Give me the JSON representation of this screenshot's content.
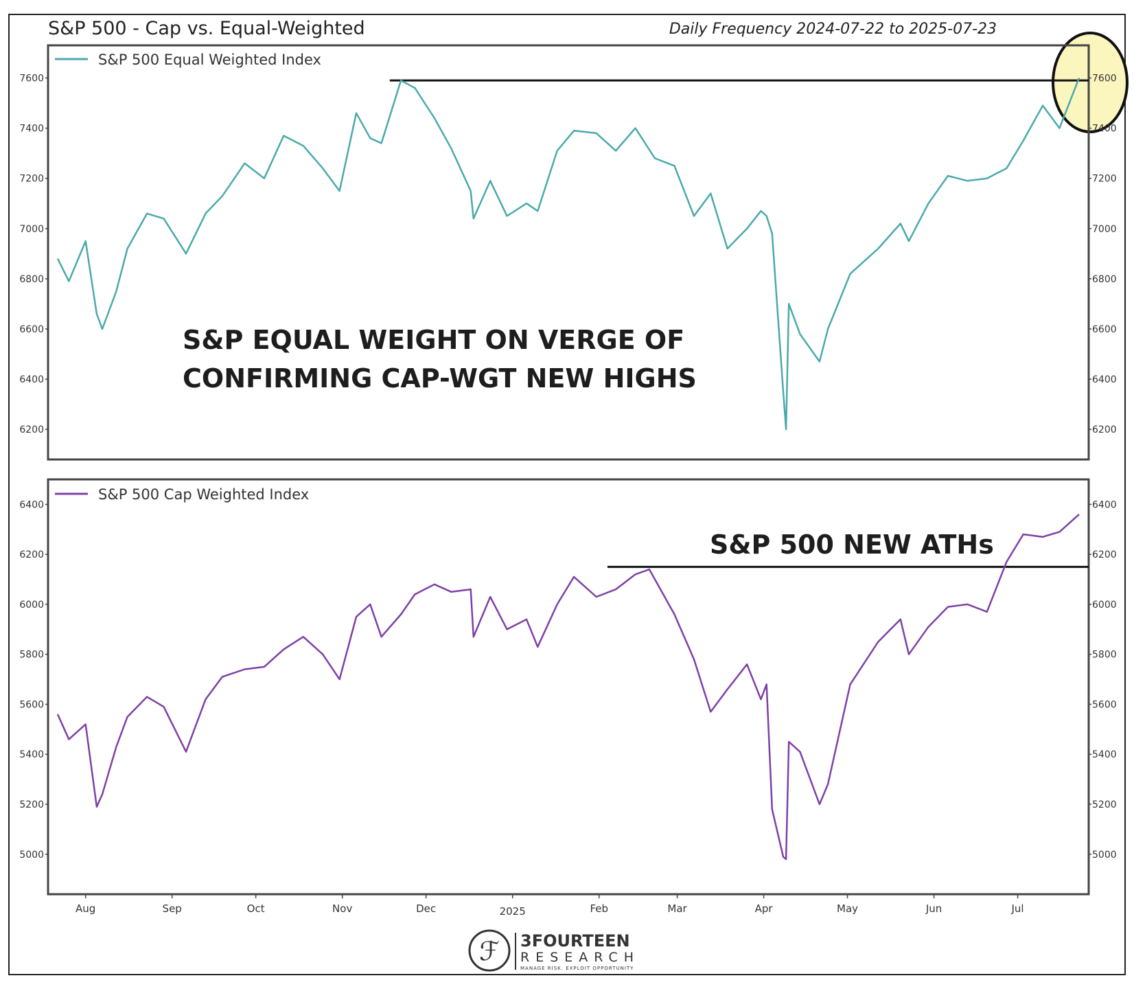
{
  "title": "S&P 500 - Cap vs. Equal-Weighted",
  "subtitle": "Daily Frequency 2024-07-22 to 2025-07-23",
  "colors": {
    "equal": "#4aa9ab",
    "cap": "#7e3fa6",
    "highlight_fill": "#fbf5be",
    "line": "#111111"
  },
  "logo": {
    "name": "3FOURTEEN",
    "sub": "RESEARCH",
    "tagline": "MANAGE RISK. EXPLOIT OPPORTUNITY"
  },
  "chart_data": [
    {
      "type": "line",
      "legend": "S&P 500 Equal Weighted Index",
      "annotation": [
        "S&P EQUAL WEIGHT ON VERGE OF",
        "CONFIRMING CAP-WGT NEW HIGHS"
      ],
      "ylim": [
        6080,
        7730
      ],
      "yticks": [
        6200,
        6400,
        6600,
        6800,
        7000,
        7200,
        7400,
        7600
      ],
      "reference_level": 7590,
      "reference_start": "2024-11-18",
      "highlight": "last ~3 weeks of July 2025 (circled)",
      "x": [
        "2024-07-22",
        "2024-07-26",
        "2024-08-01",
        "2024-08-05",
        "2024-08-07",
        "2024-08-12",
        "2024-08-16",
        "2024-08-23",
        "2024-08-29",
        "2024-09-06",
        "2024-09-13",
        "2024-09-19",
        "2024-09-27",
        "2024-10-04",
        "2024-10-11",
        "2024-10-18",
        "2024-10-25",
        "2024-10-31",
        "2024-11-06",
        "2024-11-11",
        "2024-11-15",
        "2024-11-22",
        "2024-11-27",
        "2024-12-04",
        "2024-12-10",
        "2024-12-17",
        "2024-12-18",
        "2024-12-24",
        "2024-12-30",
        "2025-01-06",
        "2025-01-10",
        "2025-01-17",
        "2025-01-23",
        "2025-01-31",
        "2025-02-07",
        "2025-02-14",
        "2025-02-21",
        "2025-02-28",
        "2025-03-07",
        "2025-03-13",
        "2025-03-19",
        "2025-03-26",
        "2025-03-31",
        "2025-04-02",
        "2025-04-04",
        "2025-04-08",
        "2025-04-09",
        "2025-04-10",
        "2025-04-14",
        "2025-04-21",
        "2025-04-24",
        "2025-05-02",
        "2025-05-12",
        "2025-05-20",
        "2025-05-23",
        "2025-05-30",
        "2025-06-06",
        "2025-06-13",
        "2025-06-20",
        "2025-06-27",
        "2025-07-03",
        "2025-07-10",
        "2025-07-16",
        "2025-07-23"
      ],
      "values": [
        6880,
        6790,
        6950,
        6660,
        6600,
        6750,
        6920,
        7060,
        7040,
        6900,
        7060,
        7130,
        7260,
        7200,
        7370,
        7330,
        7240,
        7150,
        7460,
        7360,
        7340,
        7590,
        7560,
        7440,
        7320,
        7150,
        7040,
        7190,
        7050,
        7100,
        7070,
        7310,
        7390,
        7380,
        7310,
        7400,
        7280,
        7250,
        7050,
        7140,
        6920,
        7000,
        7070,
        7050,
        6980,
        6350,
        6200,
        6700,
        6580,
        6470,
        6600,
        6820,
        6920,
        7020,
        6950,
        7100,
        7210,
        7190,
        7200,
        7240,
        7350,
        7490,
        7400,
        7600
      ]
    },
    {
      "type": "line",
      "legend": "S&P 500 Cap Weighted Index",
      "annotation": [
        "S&P 500 NEW ATHs"
      ],
      "ylim": [
        4840,
        6500
      ],
      "yticks": [
        5000,
        5200,
        5400,
        5600,
        5800,
        6000,
        6200,
        6400
      ],
      "reference_level": 6150,
      "reference_start": "2025-02-04",
      "x": [
        "2024-07-22",
        "2024-07-26",
        "2024-08-01",
        "2024-08-05",
        "2024-08-07",
        "2024-08-12",
        "2024-08-16",
        "2024-08-23",
        "2024-08-29",
        "2024-09-06",
        "2024-09-13",
        "2024-09-19",
        "2024-09-27",
        "2024-10-04",
        "2024-10-11",
        "2024-10-18",
        "2024-10-25",
        "2024-10-31",
        "2024-11-06",
        "2024-11-11",
        "2024-11-15",
        "2024-11-22",
        "2024-11-27",
        "2024-12-04",
        "2024-12-10",
        "2024-12-17",
        "2024-12-18",
        "2024-12-24",
        "2024-12-30",
        "2025-01-06",
        "2025-01-10",
        "2025-01-17",
        "2025-01-23",
        "2025-01-31",
        "2025-02-07",
        "2025-02-14",
        "2025-02-19",
        "2025-02-28",
        "2025-03-07",
        "2025-03-13",
        "2025-03-19",
        "2025-03-26",
        "2025-03-31",
        "2025-04-02",
        "2025-04-04",
        "2025-04-08",
        "2025-04-09",
        "2025-04-10",
        "2025-04-14",
        "2025-04-21",
        "2025-04-24",
        "2025-05-02",
        "2025-05-12",
        "2025-05-20",
        "2025-05-23",
        "2025-05-30",
        "2025-06-06",
        "2025-06-13",
        "2025-06-20",
        "2025-06-27",
        "2025-07-03",
        "2025-07-10",
        "2025-07-16",
        "2025-07-23"
      ],
      "values": [
        5560,
        5460,
        5520,
        5190,
        5240,
        5430,
        5550,
        5630,
        5590,
        5410,
        5620,
        5710,
        5740,
        5750,
        5820,
        5870,
        5800,
        5700,
        5950,
        6000,
        5870,
        5960,
        6040,
        6080,
        6050,
        6060,
        5870,
        6030,
        5900,
        5940,
        5830,
        6000,
        6110,
        6030,
        6060,
        6120,
        6140,
        5960,
        5780,
        5570,
        5660,
        5760,
        5620,
        5680,
        5180,
        4990,
        4980,
        5450,
        5410,
        5200,
        5280,
        5680,
        5850,
        5940,
        5800,
        5910,
        5990,
        6000,
        5970,
        6170,
        6280,
        6270,
        6290,
        6360
      ]
    }
  ],
  "x_axis": {
    "start": "2024-07-22",
    "end": "2025-07-23",
    "ticks": [
      {
        "label": "Aug",
        "date": "2024-08-01"
      },
      {
        "label": "Sep",
        "date": "2024-09-01"
      },
      {
        "label": "Oct",
        "date": "2024-10-01"
      },
      {
        "label": "Nov",
        "date": "2024-11-01"
      },
      {
        "label": "Dec",
        "date": "2024-12-01"
      },
      {
        "label": "2025",
        "date": "2025-01-01"
      },
      {
        "label": "Feb",
        "date": "2025-02-01"
      },
      {
        "label": "Mar",
        "date": "2025-03-01"
      },
      {
        "label": "Apr",
        "date": "2025-04-01"
      },
      {
        "label": "May",
        "date": "2025-05-01"
      },
      {
        "label": "Jun",
        "date": "2025-06-01"
      },
      {
        "label": "Jul",
        "date": "2025-07-01"
      }
    ]
  }
}
